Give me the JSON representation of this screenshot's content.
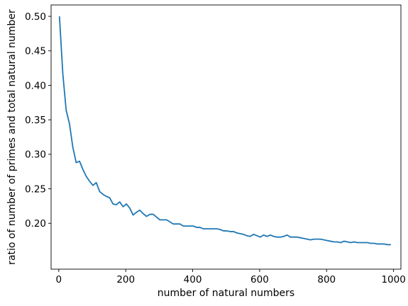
{
  "chart_data": {
    "type": "line",
    "title": "",
    "xlabel": "number of natural numbers",
    "ylabel": "ratio of number of primes and total natural number",
    "xlim": [
      -23,
      1022
    ],
    "ylim": [
      0.1335,
      0.5165
    ],
    "xticks": [
      0,
      200,
      400,
      600,
      800,
      1000
    ],
    "xtick_labels": [
      "0",
      "200",
      "400",
      "600",
      "800",
      "1000"
    ],
    "yticks": [
      0.2,
      0.25,
      0.3,
      0.35,
      0.4,
      0.45,
      0.5
    ],
    "ytick_labels": [
      "0.20",
      "0.25",
      "0.30",
      "0.35",
      "0.40",
      "0.45",
      "0.50"
    ],
    "grid": false,
    "legend": null,
    "line_color": "#1f77b4",
    "series": [
      {
        "x": [
          2,
          12,
          22,
          32,
          42,
          52,
          62,
          72,
          82,
          92,
          102,
          112,
          122,
          132,
          142,
          152,
          162,
          172,
          182,
          192,
          202,
          212,
          222,
          232,
          242,
          252,
          262,
          272,
          282,
          292,
          302,
          312,
          322,
          332,
          342,
          352,
          362,
          372,
          382,
          392,
          402,
          412,
          422,
          432,
          442,
          452,
          462,
          472,
          482,
          492,
          502,
          512,
          522,
          532,
          542,
          552,
          562,
          572,
          582,
          592,
          602,
          612,
          622,
          632,
          642,
          652,
          662,
          672,
          682,
          692,
          702,
          712,
          722,
          732,
          742,
          752,
          762,
          772,
          782,
          792,
          802,
          812,
          822,
          832,
          842,
          852,
          862,
          872,
          882,
          892,
          902,
          912,
          922,
          932,
          942,
          952,
          962,
          972,
          982,
          992
        ],
        "values": [
          0.5,
          0.417,
          0.364,
          0.344,
          0.31,
          0.288,
          0.29,
          0.278,
          0.268,
          0.261,
          0.255,
          0.259,
          0.246,
          0.242,
          0.239,
          0.237,
          0.228,
          0.227,
          0.231,
          0.224,
          0.228,
          0.222,
          0.212,
          0.216,
          0.219,
          0.214,
          0.21,
          0.213,
          0.213,
          0.209,
          0.205,
          0.205,
          0.205,
          0.202,
          0.199,
          0.199,
          0.199,
          0.196,
          0.196,
          0.196,
          0.196,
          0.194,
          0.194,
          0.192,
          0.192,
          0.192,
          0.192,
          0.192,
          0.191,
          0.189,
          0.189,
          0.188,
          0.188,
          0.186,
          0.185,
          0.184,
          0.182,
          0.181,
          0.184,
          0.182,
          0.18,
          0.183,
          0.181,
          0.183,
          0.181,
          0.18,
          0.18,
          0.181,
          0.183,
          0.18,
          0.18,
          0.18,
          0.179,
          0.178,
          0.177,
          0.176,
          0.177,
          0.177,
          0.177,
          0.176,
          0.175,
          0.174,
          0.173,
          0.173,
          0.172,
          0.174,
          0.173,
          0.172,
          0.173,
          0.172,
          0.172,
          0.172,
          0.172,
          0.171,
          0.171,
          0.17,
          0.17,
          0.17,
          0.169,
          0.169
        ]
      }
    ]
  }
}
